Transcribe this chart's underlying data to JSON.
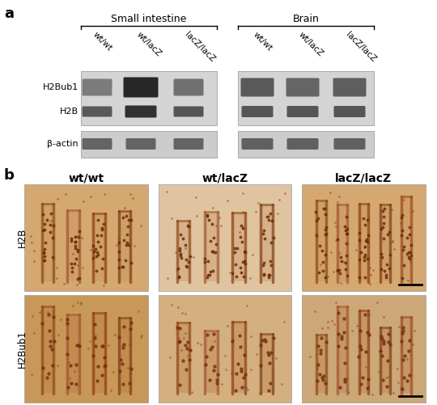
{
  "panel_a_label": "a",
  "panel_b_label": "b",
  "group1_label": "Small intestine",
  "group2_label": "Brain",
  "col_labels": [
    "wt/wt",
    "wt/lacZ",
    "lacZ/lacZ"
  ],
  "row_labels_a": [
    "H2Bub1",
    "H2B",
    "β-actin"
  ],
  "row_labels_b": [
    "H2B",
    "H2Bub1"
  ],
  "col_labels_b": [
    "wt/wt",
    "wt/lacZ",
    "lacZ/lacZ"
  ],
  "bg_color": "#ffffff",
  "blot_bg_upper": "#d4d4d4",
  "blot_bg_lower": "#cccccc",
  "ihc_bg_h2b_1": "#d4a870",
  "ihc_bg_h2b_2": "#e0c4a0",
  "ihc_bg_h2b_3": "#d4a870",
  "ihc_bg_h2bub1_1": "#c89858",
  "ihc_bg_h2bub1_2": "#d4b080",
  "ihc_bg_h2bub1_3": "#cca878"
}
